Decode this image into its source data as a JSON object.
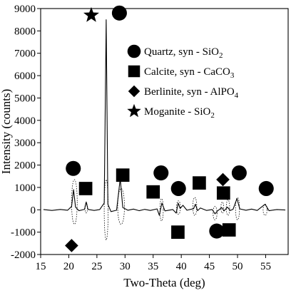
{
  "chart_data": {
    "type": "line",
    "xlabel": "Two-Theta (deg)",
    "ylabel": "Intensity (counts)",
    "xlim": [
      15,
      59
    ],
    "ylim": [
      -2000,
      9000
    ],
    "x_ticks": [
      15,
      20,
      25,
      30,
      35,
      40,
      45,
      50,
      55
    ],
    "y_ticks": [
      -2000,
      -1000,
      0,
      1000,
      2000,
      3000,
      4000,
      5000,
      6000,
      7000,
      8000,
      9000
    ],
    "grid": false,
    "legend_position": "right",
    "legend": [
      {
        "symbol": "circle",
        "label": "Quartz, syn - SiO",
        "subscript": "2",
        "label_suffix": ""
      },
      {
        "symbol": "square",
        "label": "Calcite, syn - CaCO",
        "subscript": "3",
        "label_suffix": ""
      },
      {
        "symbol": "diamond",
        "label": "Berlinite, syn - AlPO",
        "subscript": "4",
        "label_suffix": ""
      },
      {
        "symbol": "star",
        "label": "Moganite - SiO",
        "subscript": "2",
        "label_suffix": ""
      }
    ],
    "series": [
      {
        "values": [
          [
            15.5,
            10
          ],
          [
            17,
            -30
          ],
          [
            18.5,
            15
          ],
          [
            19.8,
            -20
          ],
          [
            20.5,
            150
          ],
          [
            20.85,
            900
          ],
          [
            21.2,
            120
          ],
          [
            21.8,
            -40
          ],
          [
            22.8,
            20
          ],
          [
            23.1,
            350
          ],
          [
            23.4,
            20
          ],
          [
            24.5,
            -30
          ],
          [
            25.5,
            10
          ],
          [
            26.3,
            300
          ],
          [
            26.65,
            8500
          ],
          [
            26.95,
            250
          ],
          [
            27.5,
            -80
          ],
          [
            28.5,
            -20
          ],
          [
            29.15,
            1400
          ],
          [
            29.6,
            100
          ],
          [
            30.5,
            -20
          ],
          [
            31.5,
            30
          ],
          [
            32.5,
            -40
          ],
          [
            33.5,
            20
          ],
          [
            34.5,
            -30
          ],
          [
            35.7,
            40
          ],
          [
            36.1,
            -250
          ],
          [
            36.55,
            300
          ],
          [
            37.1,
            -50
          ],
          [
            38.5,
            10
          ],
          [
            39.1,
            -150
          ],
          [
            39.45,
            300
          ],
          [
            39.8,
            60
          ],
          [
            40.3,
            200
          ],
          [
            41,
            -20
          ],
          [
            42.2,
            50
          ],
          [
            42.5,
            250
          ],
          [
            42.9,
            -40
          ],
          [
            43.4,
            80
          ],
          [
            44.5,
            -30
          ],
          [
            45.5,
            10
          ],
          [
            46.0,
            -180
          ],
          [
            46.4,
            -60
          ],
          [
            47.2,
            100
          ],
          [
            47.6,
            -50
          ],
          [
            48.2,
            120
          ],
          [
            48.7,
            -30
          ],
          [
            49.2,
            20
          ],
          [
            49.9,
            500
          ],
          [
            50.4,
            40
          ],
          [
            51.5,
            -20
          ],
          [
            52.5,
            30
          ],
          [
            53.5,
            -30
          ],
          [
            54.9,
            250
          ],
          [
            55.6,
            -40
          ],
          [
            57,
            10
          ],
          [
            58.5,
            -10
          ]
        ]
      }
    ],
    "markers": [
      {
        "symbol": "circle",
        "x": 20.8,
        "y": 1850
      },
      {
        "symbol": "circle",
        "x": 29.0,
        "y": 8800
      },
      {
        "symbol": "circle",
        "x": 36.4,
        "y": 1650
      },
      {
        "symbol": "circle",
        "x": 39.5,
        "y": 950
      },
      {
        "symbol": "circle",
        "x": 46.3,
        "y": -950
      },
      {
        "symbol": "circle",
        "x": 50.3,
        "y": 1650
      },
      {
        "symbol": "circle",
        "x": 55.1,
        "y": 950
      },
      {
        "symbol": "square",
        "x": 23.0,
        "y": 950
      },
      {
        "symbol": "square",
        "x": 29.6,
        "y": 1550
      },
      {
        "symbol": "square",
        "x": 35.0,
        "y": 800
      },
      {
        "symbol": "square",
        "x": 39.4,
        "y": -1000
      },
      {
        "symbol": "square",
        "x": 43.2,
        "y": 1200
      },
      {
        "symbol": "square",
        "x": 47.5,
        "y": 750
      },
      {
        "symbol": "square",
        "x": 48.5,
        "y": -900
      },
      {
        "symbol": "diamond",
        "x": 20.5,
        "y": -1600
      },
      {
        "symbol": "diamond",
        "x": 47.4,
        "y": 1350
      },
      {
        "symbol": "star",
        "x": 24.0,
        "y": 8700
      }
    ],
    "ellipses": [
      {
        "x": 21.0,
        "y": 350,
        "rx": 0.5,
        "ry": 1000
      },
      {
        "x": 23.1,
        "y": 80,
        "rx": 0.22,
        "ry": 220
      },
      {
        "x": 26.65,
        "y": 0,
        "rx": 0.35,
        "ry": 1350
      },
      {
        "x": 29.3,
        "y": 150,
        "rx": 0.6,
        "ry": 800
      },
      {
        "x": 36.5,
        "y": 0,
        "rx": 0.3,
        "ry": 500
      },
      {
        "x": 39.5,
        "y": 100,
        "rx": 0.35,
        "ry": 300
      },
      {
        "x": 42.4,
        "y": 150,
        "rx": 0.35,
        "ry": 400
      },
      {
        "x": 46.0,
        "y": -150,
        "rx": 0.35,
        "ry": 300
      },
      {
        "x": 47.3,
        "y": 100,
        "rx": 0.25,
        "ry": 250
      },
      {
        "x": 48.3,
        "y": 100,
        "rx": 0.3,
        "ry": 350
      },
      {
        "x": 50.0,
        "y": 50,
        "rx": 0.35,
        "ry": 500
      },
      {
        "x": 54.9,
        "y": 0,
        "rx": 0.35,
        "ry": 250
      }
    ]
  }
}
